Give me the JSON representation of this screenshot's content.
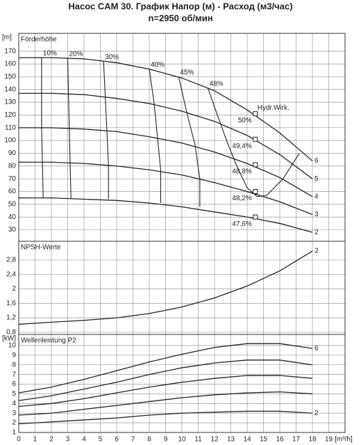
{
  "chart_data": [
    {
      "type": "line",
      "title": "Насос CAM 30. График  Напор (м) - Расход (м3/час)",
      "subtitle": "n=2950 об/мин",
      "y_unit": "[m]",
      "label": "Förderhöhe",
      "xlim": [
        0,
        20
      ],
      "xticks": [
        0,
        1,
        2,
        3,
        4,
        5,
        6,
        7,
        8,
        9,
        10,
        11,
        12,
        13,
        14,
        15,
        16,
        17,
        18,
        19
      ],
      "ylim": [
        21,
        184
      ],
      "yticks": [
        30,
        40,
        50,
        60,
        70,
        80,
        90,
        100,
        110,
        120,
        130,
        140,
        150,
        160,
        170
      ],
      "grid": true,
      "x_tick_labels": false,
      "x": [
        0,
        2,
        4,
        6,
        8,
        10,
        12,
        14,
        16,
        18
      ],
      "series": [
        {
          "name": "6",
          "color": "#222",
          "values": [
            165,
            165,
            164,
            161,
            156,
            149,
            139,
            124,
            106,
            84
          ]
        },
        {
          "name": "5",
          "color": "#222",
          "values": [
            137,
            137,
            136,
            133,
            129,
            123,
            115,
            104,
            89,
            70
          ]
        },
        {
          "name": "4",
          "color": "#222",
          "values": [
            110,
            110,
            109,
            107,
            103,
            98,
            91,
            82,
            71,
            56
          ]
        },
        {
          "name": "3",
          "color": "#222",
          "values": [
            83,
            83,
            82,
            80,
            77,
            73,
            67,
            60,
            52,
            42
          ]
        },
        {
          "name": "2",
          "color": "#222",
          "values": [
            55,
            55,
            54,
            53,
            51,
            48,
            44,
            40,
            35,
            28
          ]
        }
      ],
      "efficiency_lines": [
        {
          "name": "10%",
          "x": [
            1.4,
            1.4,
            1.4,
            1.45,
            1.5
          ],
          "y": [
            165,
            137,
            110,
            83,
            55
          ]
        },
        {
          "name": "20%",
          "x": [
            3.0,
            3.05,
            3.1,
            3.15,
            3.2
          ],
          "y": [
            164.5,
            136.5,
            109.5,
            82.5,
            54.5
          ]
        },
        {
          "name": "30%",
          "x": [
            5.2,
            5.3,
            5.4,
            5.5,
            5.5
          ],
          "y": [
            162,
            135,
            108,
            81,
            54
          ]
        },
        {
          "name": "40%",
          "x": [
            8.0,
            8.3,
            8.5,
            8.7,
            8.7
          ],
          "y": [
            156,
            129,
            103,
            77,
            51
          ]
        },
        {
          "name": "45%",
          "x": [
            9.8,
            10.3,
            10.8,
            11.1,
            11.1
          ],
          "y": [
            150,
            122,
            97,
            70,
            48
          ]
        },
        {
          "name": "48%",
          "x": [
            11.6,
            12.2,
            12.8,
            13.4,
            14.0,
            14.6,
            15.2,
            16.2,
            17.2
          ],
          "y": [
            141,
            119,
            98,
            79,
            63,
            56,
            57,
            70,
            90
          ]
        }
      ],
      "efficiency_points": [
        {
          "label": "50%",
          "x": 14.5,
          "y": 121
        },
        {
          "label": "49,4%",
          "x": 14.5,
          "y": 101
        },
        {
          "label": "48,8%",
          "x": 14.5,
          "y": 81
        },
        {
          "label": "48,2%",
          "x": 14.5,
          "y": 60
        },
        {
          "label": "47,6%",
          "x": 14.5,
          "y": 40
        }
      ],
      "envelope_label": "Hydr.Wirk."
    },
    {
      "type": "line",
      "label": "NPSH-Werte",
      "xlim": [
        0,
        20
      ],
      "xticks": [
        0,
        1,
        2,
        3,
        4,
        5,
        6,
        7,
        8,
        9,
        10,
        11,
        12,
        13,
        14,
        15,
        16,
        17,
        18,
        19
      ],
      "ylim": [
        0.74,
        3.32
      ],
      "yticks": [
        {
          "value": 0.8,
          "label": "0,8"
        },
        {
          "value": 1.2,
          "label": "1,2"
        },
        {
          "value": 1.6,
          "label": "1,6"
        },
        2,
        {
          "value": 2.4,
          "label": "2,4"
        },
        {
          "value": 2.8,
          "label": "2,8"
        }
      ],
      "grid": true,
      "x_tick_labels": false,
      "x": [
        0,
        2,
        4,
        6,
        8,
        10,
        12,
        14,
        16,
        18
      ],
      "series": [
        {
          "name": "2",
          "color": "#222",
          "values": [
            1.02,
            1.08,
            1.13,
            1.2,
            1.32,
            1.5,
            1.75,
            2.08,
            2.5,
            3.05
          ]
        }
      ]
    },
    {
      "type": "line",
      "y_unit": "[kW]",
      "label": "Wellenleistung P2",
      "xlim": [
        0,
        20
      ],
      "xticks": [
        0,
        1,
        2,
        3,
        4,
        5,
        6,
        7,
        8,
        9,
        10,
        11,
        12,
        13,
        14,
        15,
        16,
        17,
        18,
        19
      ],
      "x_unit": "[m³/h]",
      "ylim": [
        1,
        11.15
      ],
      "yticks": [
        1,
        2,
        3,
        4,
        5,
        6,
        7,
        8,
        9,
        10
      ],
      "grid": true,
      "x_tick_labels": true,
      "x": [
        0,
        2,
        4,
        6,
        8,
        10,
        12,
        14,
        16,
        18
      ],
      "series": [
        {
          "name": "6",
          "color": "#222",
          "values": [
            5.1,
            5.7,
            6.5,
            7.4,
            8.3,
            9.1,
            9.8,
            10.2,
            10.2,
            9.7
          ]
        },
        {
          "name": null,
          "color": "#222",
          "values": [
            4.3,
            4.8,
            5.5,
            6.2,
            7.0,
            7.7,
            8.2,
            8.5,
            8.5,
            8.0
          ]
        },
        {
          "name": null,
          "color": "#222",
          "values": [
            3.7,
            4.0,
            4.5,
            5.1,
            5.7,
            6.2,
            6.6,
            6.9,
            6.9,
            6.6
          ]
        },
        {
          "name": null,
          "color": "#222",
          "values": [
            2.8,
            3.0,
            3.4,
            3.8,
            4.2,
            4.6,
            4.9,
            5.1,
            5.2,
            5.0
          ]
        },
        {
          "name": "2",
          "color": "#222",
          "values": [
            1.9,
            2.1,
            2.3,
            2.5,
            2.8,
            3.0,
            3.1,
            3.2,
            3.2,
            3.0
          ]
        }
      ]
    }
  ]
}
